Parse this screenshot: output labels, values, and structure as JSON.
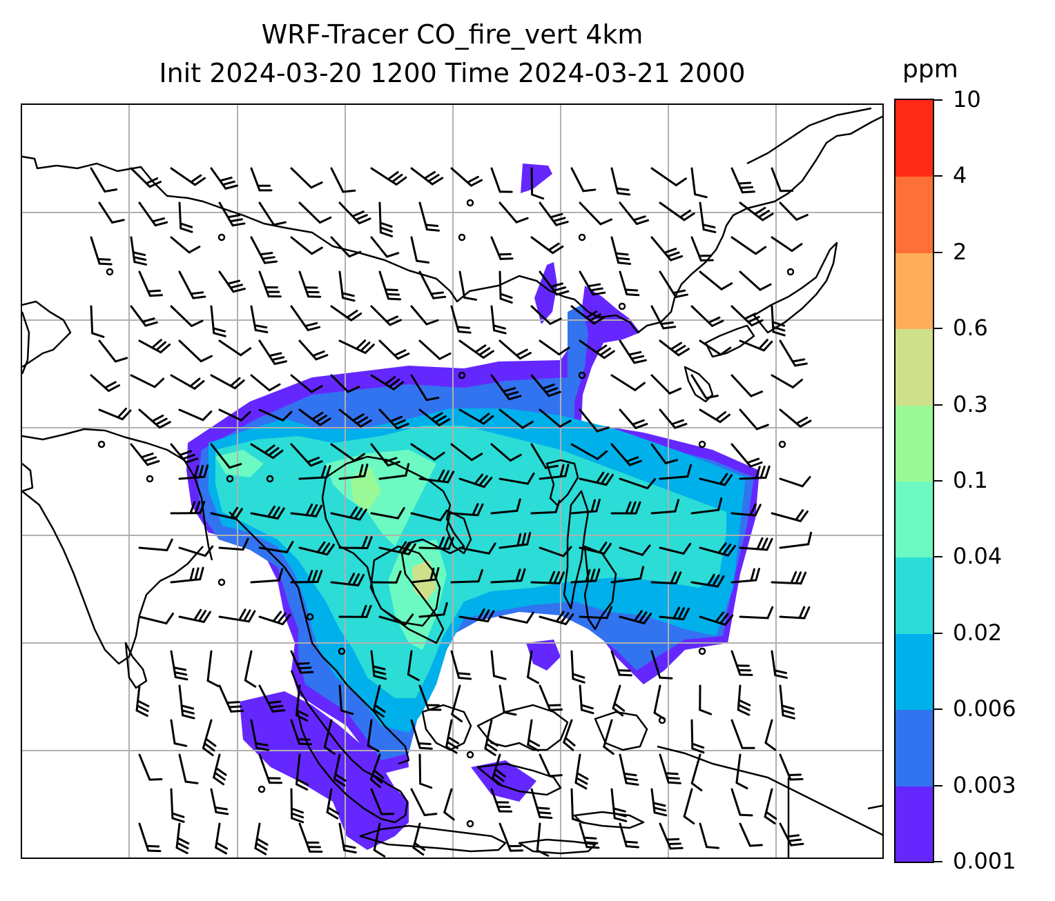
{
  "title": {
    "line1": "WRF-Tracer CO_fire_vert 4km",
    "line2": "Init 2024-03-20 1200 Time 2024-03-21 2000"
  },
  "colorbar": {
    "unit": "ppm",
    "levels": [
      "0.001",
      "0.003",
      "0.006",
      "0.02",
      "0.04",
      "0.1",
      "0.3",
      "0.6",
      "2",
      "4",
      "10"
    ],
    "colors": [
      "#6428ff",
      "#3273f0",
      "#00b0eb",
      "#2cdcd6",
      "#6cfac2",
      "#9bf896",
      "#cfe08a",
      "#ffad5a",
      "#ff7038",
      "#ff2a16"
    ]
  },
  "map": {
    "coastline_color": "#000000",
    "gridline_color": "#b0b0b0",
    "wind_barb_color": "#000000",
    "plume_colors": {
      "low": "#6428ff",
      "lowmid": "#3273f0",
      "mid": "#00b0eb",
      "high": "#2cdcd6",
      "higher": "#6cfac2",
      "peak": "#9bf896",
      "max": "#cfe08a"
    }
  }
}
